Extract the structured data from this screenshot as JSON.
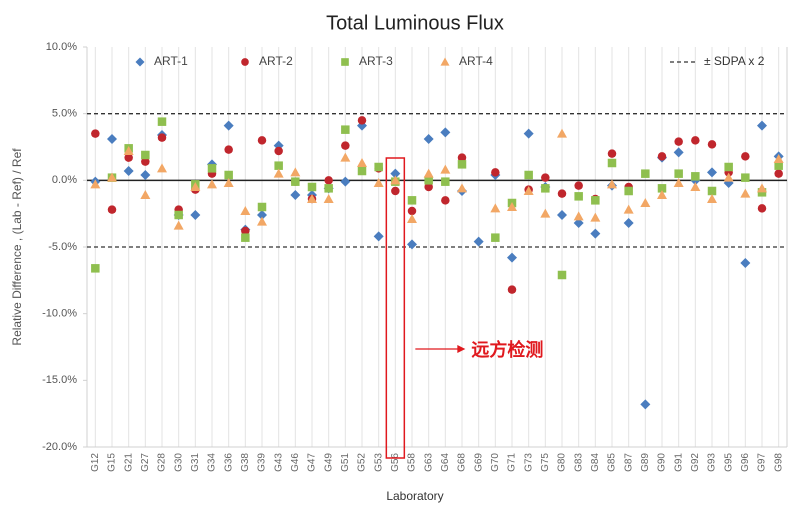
{
  "chart_data": {
    "type": "scatter",
    "title": "Total Luminous Flux",
    "xlabel": "Laboratory",
    "ylabel": "Relative Difference , (Lab - Ref) / Ref",
    "categories": [
      "G12",
      "G15",
      "G21",
      "G27",
      "G28",
      "G30",
      "G31",
      "G34",
      "G36",
      "G38",
      "G39",
      "G43",
      "G46",
      "G47",
      "G49",
      "G51",
      "G52",
      "G53",
      "G56",
      "G58",
      "G63",
      "G64",
      "G68",
      "G69",
      "G70",
      "G71",
      "G73",
      "G75",
      "G80",
      "G83",
      "G84",
      "G85",
      "G87",
      "G89",
      "G90",
      "G91",
      "G92",
      "G93",
      "G95",
      "G96",
      "G97",
      "G98"
    ],
    "series": [
      {
        "name": "ART-1",
        "color": "#4a7dbf",
        "marker": "diamond",
        "values": [
          -0.1,
          3.1,
          0.7,
          0.4,
          3.4,
          -2.6,
          -2.6,
          1.2,
          4.1,
          -3.7,
          -2.6,
          2.6,
          -1.1,
          -1.1,
          -0.6,
          -0.1,
          4.1,
          -4.2,
          0.5,
          -4.8,
          3.1,
          3.6,
          -0.8,
          -4.6,
          0.4,
          -5.8,
          3.5,
          -0.5,
          -2.6,
          -3.2,
          -4.0,
          -0.4,
          -3.2,
          -16.8,
          1.7,
          2.1,
          0.0,
          0.6,
          -0.2,
          -6.2,
          4.1,
          1.8
        ]
      },
      {
        "name": "ART-2",
        "color": "#c0262d",
        "marker": "circle",
        "values": [
          3.5,
          -2.2,
          1.7,
          1.4,
          3.2,
          -2.2,
          -0.7,
          0.5,
          2.3,
          -3.8,
          3.0,
          2.2,
          -0.1,
          -1.4,
          0.0,
          2.6,
          4.5,
          0.9,
          -0.8,
          -2.3,
          -0.5,
          -1.5,
          1.7,
          null,
          0.6,
          -8.2,
          -0.7,
          0.2,
          -1.0,
          -0.4,
          -1.4,
          2.0,
          -0.5,
          null,
          1.8,
          2.9,
          3.0,
          2.7,
          0.6,
          1.8,
          -2.1,
          0.5
        ]
      },
      {
        "name": "ART-3",
        "color": "#8fbf4f",
        "marker": "square",
        "values": [
          -6.6,
          0.2,
          2.4,
          1.9,
          4.4,
          -2.6,
          -0.3,
          0.9,
          0.4,
          -4.3,
          -2.0,
          1.1,
          -0.1,
          -0.5,
          -0.6,
          3.8,
          0.7,
          1.0,
          -0.1,
          -1.5,
          0.0,
          -0.1,
          1.2,
          null,
          -4.3,
          -1.7,
          0.4,
          -0.6,
          -7.1,
          -1.2,
          -1.5,
          1.3,
          -0.8,
          0.5,
          -0.6,
          0.5,
          0.3,
          -0.8,
          1.0,
          0.2,
          -0.9,
          1.1
        ]
      },
      {
        "name": "ART-4",
        "color": "#f2a765",
        "marker": "triangle",
        "values": [
          -0.3,
          0.2,
          2.2,
          -1.1,
          0.9,
          -3.4,
          -0.5,
          -0.3,
          -0.2,
          -2.3,
          -3.1,
          0.5,
          0.6,
          -1.4,
          -1.4,
          1.7,
          1.3,
          -0.2,
          0.0,
          -2.9,
          0.5,
          0.8,
          -0.6,
          null,
          -2.1,
          -2.0,
          -0.8,
          -2.5,
          3.5,
          -2.7,
          -2.8,
          -0.3,
          -2.2,
          -1.7,
          -1.1,
          -0.2,
          -0.5,
          -1.4,
          0.2,
          -1.0,
          -0.6,
          1.6
        ]
      }
    ],
    "reference": {
      "name": "± SDPA x 2",
      "values": [
        5,
        -5
      ]
    },
    "ylim": [
      -20,
      10
    ],
    "yticks": [
      {
        "value": -20,
        "label": "-20.0%"
      },
      {
        "value": -15,
        "label": "-15.0%"
      },
      {
        "value": -10,
        "label": "-10.0%"
      },
      {
        "value": -5,
        "label": "-5.0%"
      },
      {
        "value": 0,
        "label": "0.0%"
      },
      {
        "value": 5,
        "label": "5.0%"
      },
      {
        "value": 10,
        "label": "10.0%"
      }
    ],
    "grid": "x",
    "annotation": {
      "text": "远方检测",
      "category": "G56",
      "color": "#e0191e"
    }
  }
}
